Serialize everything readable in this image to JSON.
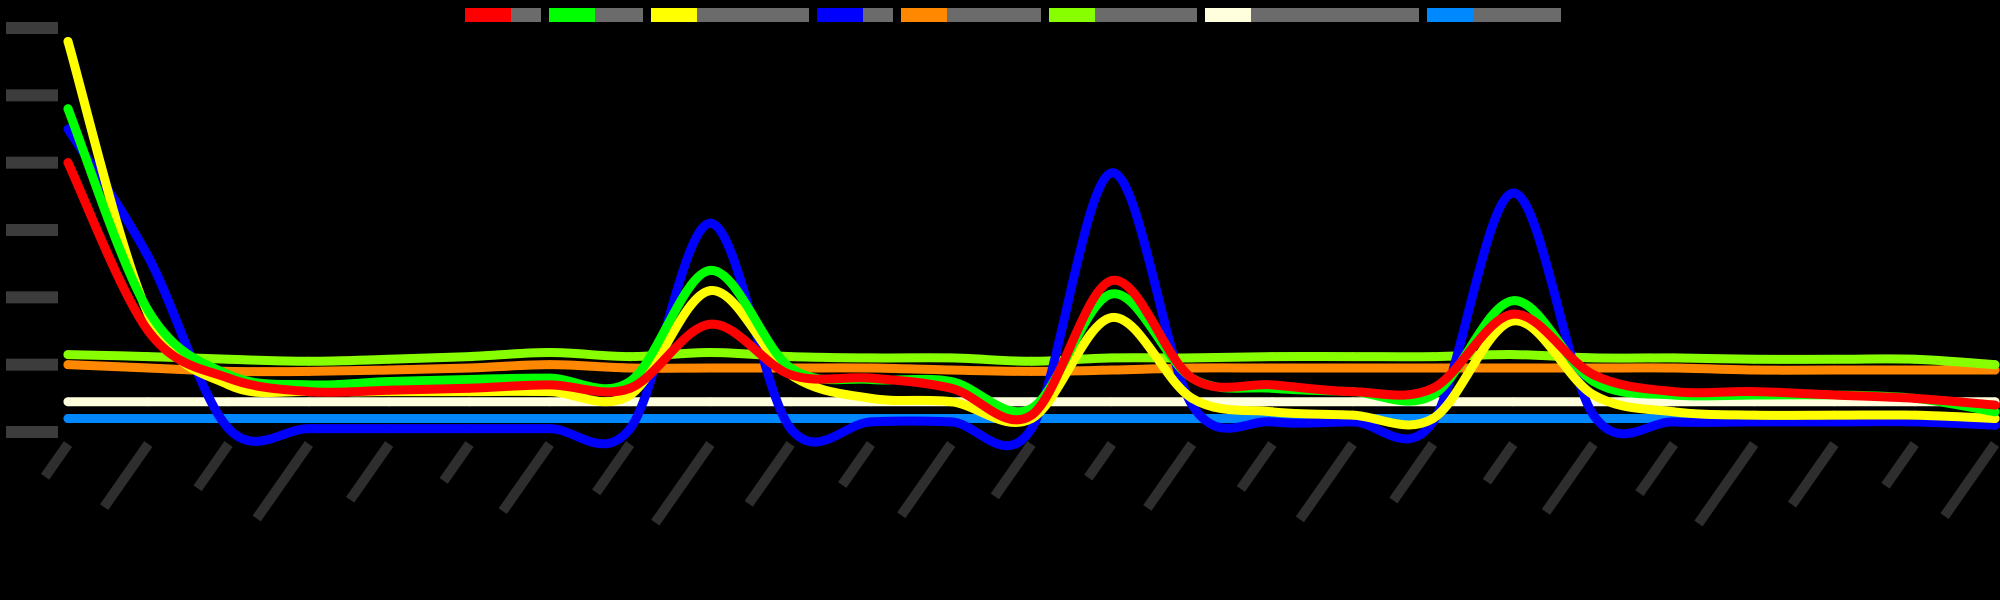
{
  "chart_data": {
    "type": "line",
    "title": "",
    "xlabel": "",
    "ylabel": "",
    "ylim": [
      0,
      600
    ],
    "yticks": [
      0,
      100,
      200,
      300,
      400,
      500,
      600
    ],
    "legend_position": "top-center",
    "grid": false,
    "x_points": 25,
    "series": [
      {
        "color": "#ff0000",
        "values": [
          400,
          150,
          80,
          60,
          62,
          65,
          70,
          65,
          160,
          85,
          80,
          65,
          25,
          225,
          80,
          70,
          60,
          65,
          175,
          85,
          60,
          60,
          55,
          50,
          40
        ]
      },
      {
        "color": "#00ff00",
        "values": [
          480,
          180,
          85,
          70,
          75,
          78,
          80,
          75,
          240,
          95,
          78,
          75,
          35,
          205,
          80,
          65,
          60,
          55,
          195,
          75,
          55,
          55,
          55,
          50,
          30
        ]
      },
      {
        "color": "#ffff00",
        "values": [
          580,
          175,
          70,
          60,
          60,
          60,
          60,
          55,
          210,
          85,
          50,
          45,
          20,
          170,
          50,
          30,
          25,
          20,
          165,
          55,
          30,
          25,
          25,
          25,
          20
        ]
      },
      {
        "color": "#0000ff",
        "values": [
          450,
          260,
          5,
          5,
          5,
          5,
          5,
          5,
          310,
          5,
          15,
          15,
          5,
          385,
          40,
          15,
          15,
          15,
          355,
          25,
          15,
          15,
          15,
          15,
          10
        ]
      },
      {
        "color": "#ff8800",
        "values": [
          100,
          95,
          90,
          90,
          92,
          95,
          100,
          95,
          95,
          95,
          95,
          92,
          90,
          92,
          95,
          95,
          95,
          95,
          95,
          95,
          95,
          92,
          92,
          92,
          92
        ]
      },
      {
        "color": "#88ff00",
        "values": [
          115,
          112,
          108,
          105,
          108,
          112,
          118,
          112,
          118,
          112,
          110,
          110,
          105,
          110,
          110,
          112,
          112,
          112,
          115,
          110,
          110,
          108,
          108,
          108,
          100
        ]
      },
      {
        "color": "#ffffdd",
        "values": [
          45,
          45,
          45,
          45,
          45,
          45,
          45,
          45,
          45,
          45,
          45,
          45,
          45,
          45,
          45,
          45,
          45,
          45,
          45,
          45,
          45,
          45,
          45,
          45,
          45
        ]
      },
      {
        "color": "#0088ff",
        "values": [
          20,
          20,
          20,
          20,
          20,
          20,
          20,
          20,
          20,
          20,
          20,
          20,
          20,
          20,
          20,
          20,
          20,
          20,
          20,
          20,
          20,
          20,
          20,
          20,
          20
        ]
      }
    ]
  }
}
